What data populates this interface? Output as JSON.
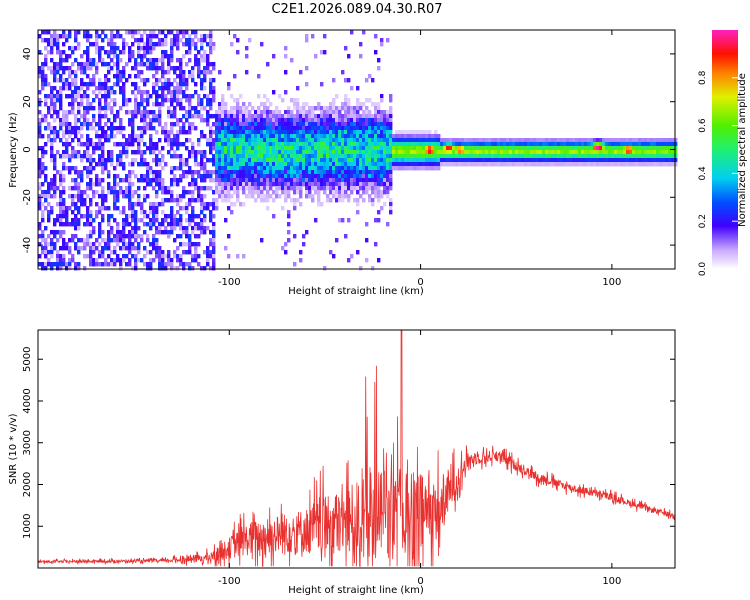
{
  "title": "C2E1.2026.089.04.30.R07",
  "colors": {
    "snr_line": "#e8302e",
    "spectro_bg": "#ffffff"
  },
  "chart_data": [
    {
      "type": "heatmap",
      "name": "spectrogram",
      "xlabel": "Height of straight line (km)",
      "ylabel": "Frequency (Hz)",
      "xlim": [
        -200,
        133
      ],
      "ylim": [
        -50,
        50
      ],
      "xticks": [
        -100,
        0,
        100
      ],
      "yticks": [
        -40,
        -20,
        0,
        20,
        40
      ],
      "description_points": [
        {
          "x_from": -200,
          "x_to": -108,
          "content": "broadband noise, low amplitude (~0.1-0.25)"
        },
        {
          "x_from": -108,
          "x_to": -15,
          "content": "energy concentrated near 0 Hz, spread about ±10 Hz, amplitude ~0.3-0.55"
        },
        {
          "x_from": -15,
          "x_to": 133,
          "content": "narrow band at ~0 Hz, amplitude ~0.55-1.0"
        }
      ],
      "peaks": [
        {
          "x": 4,
          "y": 0.5,
          "amplitude": 1.0
        },
        {
          "x": 14,
          "y": 1,
          "amplitude": 0.95
        },
        {
          "x": 20,
          "y": 0.5,
          "amplitude": 0.9
        },
        {
          "x": 92,
          "y": 1.5,
          "amplitude": 1.0
        },
        {
          "x": 108,
          "y": 0.5,
          "amplitude": 0.95
        }
      ]
    },
    {
      "type": "colorbar",
      "name": "amplitude-scale",
      "label": "Normalized spectral amplitude",
      "range": [
        0.0,
        1.0
      ],
      "ticks": [
        0.0,
        0.2,
        0.4,
        0.6,
        0.8
      ]
    },
    {
      "type": "line",
      "name": "snr",
      "xlabel": "Height of straight line (km)",
      "ylabel": "SNR (10 * v/v)",
      "xlim": [
        -200,
        133
      ],
      "ylim": [
        0,
        5700
      ],
      "xticks": [
        -100,
        0,
        100
      ],
      "yticks": [
        1000,
        2000,
        3000,
        4000,
        5000
      ],
      "envelope": [
        {
          "x": -200,
          "baseline": 150,
          "spread": 60
        },
        {
          "x": -135,
          "baseline": 170,
          "spread": 80
        },
        {
          "x": -110,
          "baseline": 250,
          "spread": 250
        },
        {
          "x": -90,
          "baseline": 700,
          "spread": 900
        },
        {
          "x": -60,
          "baseline": 900,
          "spread": 1200
        },
        {
          "x": -40,
          "baseline": 1100,
          "spread": 1800
        },
        {
          "x": -20,
          "baseline": 1300,
          "spread": 2400
        },
        {
          "x": -5,
          "baseline": 1200,
          "spread": 2600
        },
        {
          "x": 10,
          "baseline": 1400,
          "spread": 1500
        },
        {
          "x": 25,
          "baseline": 2600,
          "spread": 350
        },
        {
          "x": 40,
          "baseline": 2700,
          "spread": 300
        },
        {
          "x": 60,
          "baseline": 2200,
          "spread": 250
        },
        {
          "x": 80,
          "baseline": 1900,
          "spread": 200
        },
        {
          "x": 100,
          "baseline": 1700,
          "spread": 180
        },
        {
          "x": 120,
          "baseline": 1400,
          "spread": 150
        },
        {
          "x": 133,
          "baseline": 1250,
          "spread": 120
        }
      ],
      "max_value": 5700,
      "max_at_x": -10
    }
  ]
}
